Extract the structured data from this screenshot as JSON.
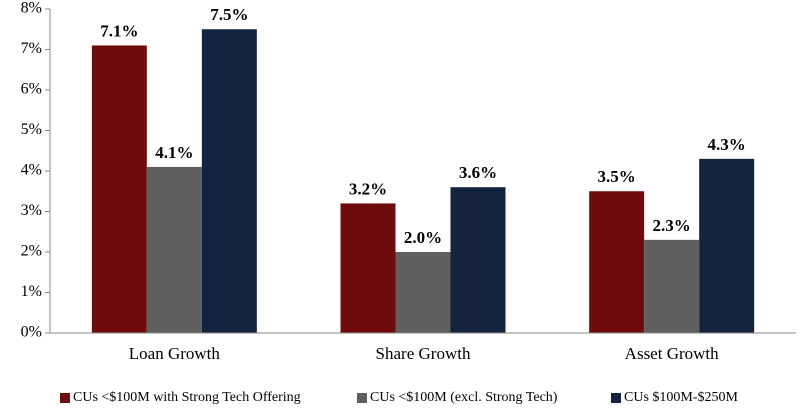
{
  "chart_data": {
    "type": "bar",
    "categories": [
      "Loan Growth",
      "Share Growth",
      "Asset Growth"
    ],
    "series": [
      {
        "name": "CUs <$100M with Strong Tech Offering",
        "color": "#6e0c0c",
        "values": [
          7.1,
          3.2,
          3.5
        ],
        "value_labels": [
          "7.1%",
          "3.2%",
          "3.5%"
        ]
      },
      {
        "name": "CUs <$100M (excl. Strong Tech)",
        "color": "#5f5f5f",
        "values": [
          4.1,
          2.0,
          2.3
        ],
        "value_labels": [
          "4.1%",
          "2.0%",
          "2.3%"
        ]
      },
      {
        "name": "CUs $100M-$250M",
        "color": "#14243f",
        "values": [
          7.5,
          3.6,
          4.3
        ],
        "value_labels": [
          "7.5%",
          "3.6%",
          "4.3%"
        ]
      }
    ],
    "ylim": [
      0,
      8
    ],
    "yticks": [
      {
        "value": 0,
        "label": "0%"
      },
      {
        "value": 1,
        "label": "1%"
      },
      {
        "value": 2,
        "label": "2%"
      },
      {
        "value": 3,
        "label": "3%"
      },
      {
        "value": 4,
        "label": "4%"
      },
      {
        "value": 5,
        "label": "5%"
      },
      {
        "value": 6,
        "label": "6%"
      },
      {
        "value": 7,
        "label": "7%"
      },
      {
        "value": 8,
        "label": "8%"
      }
    ],
    "grid": false,
    "legend": "bottom"
  }
}
